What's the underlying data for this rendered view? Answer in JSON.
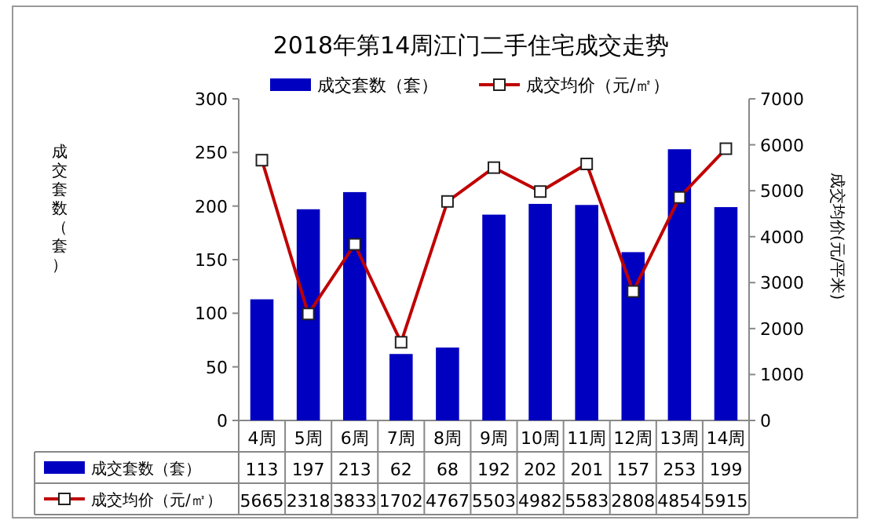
{
  "chart_data": {
    "type": "bar",
    "title": "2018年第14周江门二手住宅成交走势",
    "ylabel": "成交套数（套）",
    "y2label": "成交均价(元/平米)",
    "categories": [
      "4周",
      "5周",
      "6周",
      "7周",
      "8周",
      "9周",
      "10周",
      "11周",
      "12周",
      "13周",
      "14周"
    ],
    "series": [
      {
        "name": "成交套数（套）",
        "color": "#0000c0",
        "values": [
          113,
          197,
          213,
          62,
          68,
          192,
          202,
          201,
          157,
          253,
          199
        ]
      },
      {
        "name": "成交均价（元/㎡）",
        "type": "line",
        "axis": "y2",
        "color": "#c00000",
        "marker": "square",
        "values": [
          5665,
          2318,
          3833,
          1702,
          4767,
          5503,
          4982,
          5583,
          2808,
          4854,
          5915
        ]
      }
    ],
    "ylim": [
      0,
      300
    ],
    "yticks": [
      0,
      50,
      100,
      150,
      200,
      250,
      300
    ],
    "y2lim": [
      0,
      7000
    ],
    "y2ticks": [
      0,
      1000,
      2000,
      3000,
      4000,
      5000,
      6000,
      7000
    ],
    "legend": "top",
    "data_labels": true
  }
}
